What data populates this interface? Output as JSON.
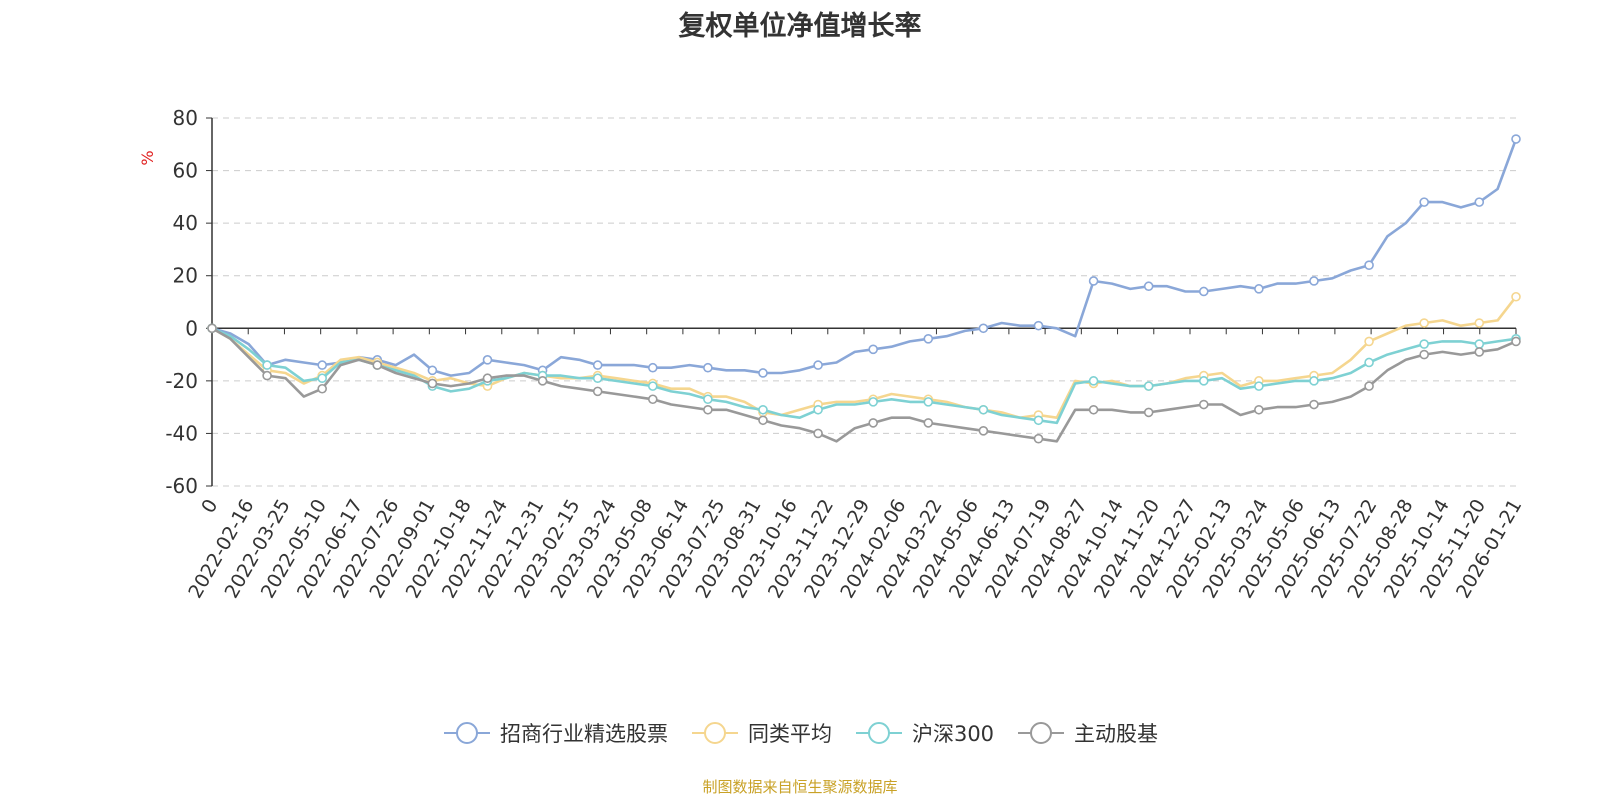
{
  "chart_data": {
    "type": "line",
    "title": "复权单位净值增长率",
    "ylabel": "%",
    "ylim": [
      -60,
      80
    ],
    "yticks": [
      80,
      60,
      40,
      20,
      0,
      -20,
      -40,
      -60
    ],
    "grid": true,
    "legend_position": "bottom",
    "x_tick_labels": [
      "0",
      "2022-02-16",
      "2022-03-25",
      "2022-05-10",
      "2022-06-17",
      "2022-07-26",
      "2022-09-01",
      "2022-10-18",
      "2022-11-24",
      "2022-12-31",
      "2023-02-15",
      "2023-03-24",
      "2023-05-08",
      "2023-06-14",
      "2023-07-25",
      "2023-08-31",
      "2023-10-16",
      "2023-11-22",
      "2023-12-29",
      "2024-02-06",
      "2024-03-22",
      "2024-05-06",
      "2024-06-13",
      "2024-07-19",
      "2024-08-27",
      "2024-10-14",
      "2024-11-20",
      "2024-12-27",
      "2025-02-13",
      "2025-03-24",
      "2025-05-06",
      "2025-06-13",
      "2025-07-22",
      "2025-08-28",
      "2025-10-14",
      "2025-11-20",
      "2026-01-21"
    ],
    "series": [
      {
        "name": "招商行业精选股票",
        "color": "#8aa7d8",
        "values": [
          0,
          -2,
          -6,
          -14,
          -12,
          -13,
          -14,
          -13,
          -11,
          -12,
          -14,
          -10,
          -16,
          -18,
          -17,
          -12,
          -13,
          -14,
          -16,
          -11,
          -12,
          -14,
          -14,
          -14,
          -15,
          -15,
          -14,
          -15,
          -16,
          -16,
          -17,
          -17,
          -16,
          -14,
          -13,
          -9,
          -8,
          -7,
          -5,
          -4,
          -3,
          -1,
          0,
          2,
          1,
          1,
          0,
          -3,
          18,
          17,
          15,
          16,
          16,
          14,
          14,
          15,
          16,
          15,
          17,
          17,
          18,
          19,
          22,
          24,
          35,
          40,
          48,
          48,
          46,
          48,
          53,
          72
        ]
      },
      {
        "name": "同类平均",
        "color": "#f5d68f",
        "values": [
          0,
          -4,
          -10,
          -16,
          -17,
          -21,
          -18,
          -12,
          -11,
          -13,
          -15,
          -17,
          -20,
          -19,
          -21,
          -22,
          -19,
          -17,
          -18,
          -19,
          -19,
          -18,
          -19,
          -20,
          -21,
          -23,
          -23,
          -26,
          -26,
          -28,
          -32,
          -33,
          -31,
          -29,
          -28,
          -28,
          -27,
          -25,
          -26,
          -27,
          -28,
          -30,
          -31,
          -32,
          -34,
          -33,
          -34,
          -20,
          -21,
          -20,
          -22,
          -22,
          -21,
          -19,
          -18,
          -17,
          -22,
          -20,
          -20,
          -19,
          -18,
          -17,
          -12,
          -5,
          -2,
          1,
          2,
          3,
          1,
          2,
          3,
          12
        ]
      },
      {
        "name": "沪深300",
        "color": "#7ed1d3",
        "values": [
          0,
          -3,
          -8,
          -14,
          -15,
          -20,
          -19,
          -13,
          -12,
          -14,
          -16,
          -18,
          -22,
          -24,
          -23,
          -20,
          -19,
          -17,
          -18,
          -18,
          -19,
          -19,
          -20,
          -21,
          -22,
          -24,
          -25,
          -27,
          -28,
          -30,
          -31,
          -33,
          -34,
          -31,
          -29,
          -29,
          -28,
          -27,
          -28,
          -28,
          -29,
          -30,
          -31,
          -33,
          -34,
          -35,
          -36,
          -21,
          -20,
          -21,
          -22,
          -22,
          -21,
          -20,
          -20,
          -19,
          -23,
          -22,
          -21,
          -20,
          -20,
          -19,
          -17,
          -13,
          -10,
          -8,
          -6,
          -5,
          -5,
          -6,
          -5,
          -4
        ]
      },
      {
        "name": "主动股基",
        "color": "#999999",
        "values": [
          0,
          -4,
          -11,
          -18,
          -19,
          -26,
          -23,
          -14,
          -12,
          -14,
          -17,
          -19,
          -21,
          -22,
          -21,
          -19,
          -18,
          -18,
          -20,
          -22,
          -23,
          -24,
          -25,
          -26,
          -27,
          -29,
          -30,
          -31,
          -31,
          -33,
          -35,
          -37,
          -38,
          -40,
          -43,
          -38,
          -36,
          -34,
          -34,
          -36,
          -37,
          -38,
          -39,
          -40,
          -41,
          -42,
          -43,
          -31,
          -31,
          -31,
          -32,
          -32,
          -31,
          -30,
          -29,
          -29,
          -33,
          -31,
          -30,
          -30,
          -29,
          -28,
          -26,
          -22,
          -16,
          -12,
          -10,
          -9,
          -10,
          -9,
          -8,
          -5
        ]
      }
    ]
  },
  "source_note": "制图数据来自恒生聚源数据库"
}
